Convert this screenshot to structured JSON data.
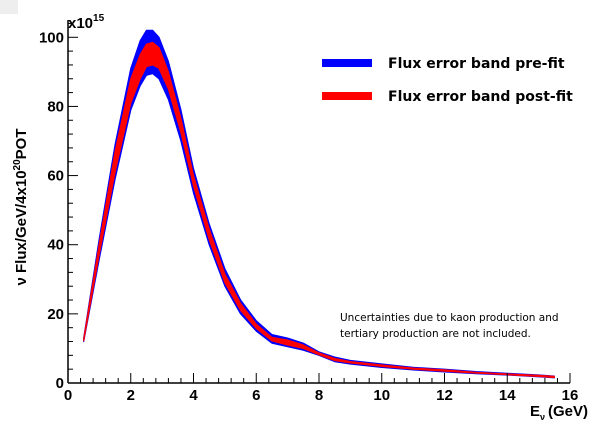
{
  "chart_data": {
    "type": "area",
    "title": "",
    "xlabel": "E",
    "xlabel_sub": "ν",
    "xlabel_unit": "(GeV)",
    "ylabel": "ν Flux/GeV/4x10",
    "ylabel_sup": "20",
    "ylabel_tail": "POT",
    "y_multiplier": "x10",
    "y_multiplier_exp": "15",
    "xlim": [
      0,
      16
    ],
    "ylim": [
      0,
      105
    ],
    "x_ticks": [
      "0",
      "2",
      "4",
      "6",
      "8",
      "10",
      "12",
      "14",
      "16"
    ],
    "y_ticks": [
      "0",
      "20",
      "40",
      "60",
      "80",
      "100"
    ],
    "grid": false,
    "legend_position": "top-right",
    "series": [
      {
        "name": "Flux error band pre-fit",
        "color": "#0000ff",
        "x": [
          0.5,
          1.0,
          1.5,
          2.0,
          2.3,
          2.5,
          2.7,
          2.9,
          3.2,
          3.6,
          4.0,
          4.5,
          5.0,
          5.5,
          6.0,
          6.5,
          7.0,
          7.5,
          8.0,
          8.5,
          9.0,
          10.0,
          11.0,
          12.0,
          13.0,
          14.0,
          15.0,
          15.5
        ],
        "upper": [
          13,
          42,
          69,
          91,
          99,
          102,
          102,
          100,
          93,
          79,
          62,
          46,
          33,
          24,
          18,
          14,
          13,
          11.5,
          9,
          7.5,
          6.5,
          5.5,
          4.5,
          4,
          3.3,
          2.8,
          2.3,
          2
        ],
        "lower": [
          12,
          36,
          59,
          79,
          86,
          89,
          89.5,
          88,
          82,
          70,
          55,
          40,
          28,
          20,
          15,
          11.5,
          10.5,
          9.5,
          8,
          6.2,
          5.5,
          4.5,
          3.8,
          3.2,
          2.7,
          2.3,
          1.8,
          1.5
        ]
      },
      {
        "name": "Flux error band post-fit",
        "color": "#ff0000",
        "x": [
          0.5,
          1.0,
          1.5,
          2.0,
          2.3,
          2.5,
          2.7,
          2.9,
          3.2,
          3.6,
          4.0,
          4.5,
          5.0,
          5.5,
          6.0,
          6.5,
          7.0,
          7.5,
          8.0,
          8.5,
          9.0,
          10.0,
          11.0,
          12.0,
          13.0,
          14.0,
          15.0,
          15.5
        ],
        "upper": [
          12.8,
          40.5,
          67,
          88,
          95,
          98,
          98.5,
          97,
          90,
          76.5,
          60,
          44.5,
          31.5,
          23,
          17,
          13.2,
          12.4,
          11,
          8.7,
          7.1,
          6.2,
          5.2,
          4.3,
          3.8,
          3.1,
          2.6,
          2.2,
          1.9
        ],
        "lower": [
          12.2,
          37.5,
          61,
          81,
          88,
          91.5,
          92,
          91,
          85,
          72.5,
          57,
          41.5,
          29,
          21,
          15.8,
          12.2,
          11,
          10,
          8.2,
          6.5,
          5.8,
          4.8,
          4,
          3.4,
          2.9,
          2.4,
          1.9,
          1.6
        ]
      }
    ],
    "annotations": [
      "Uncertainties due to kaon production and",
      "tertiary production are not included."
    ]
  }
}
